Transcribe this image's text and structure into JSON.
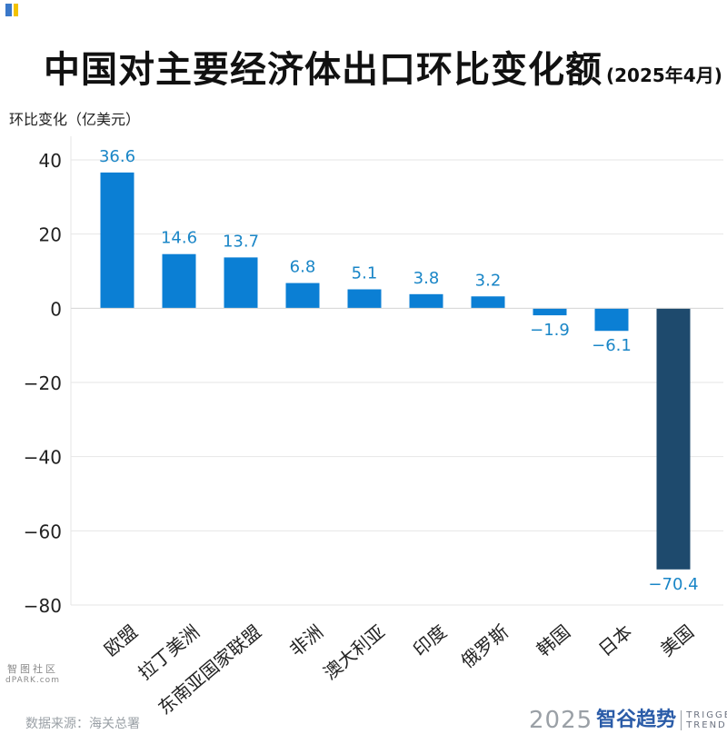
{
  "title": "中国对主要经济体出口环比变化额",
  "subtitle": "(2025年4月)",
  "ylabel": "环比变化（亿美元）",
  "source": "数据来源：海关总署",
  "brand": {
    "year": "2025",
    "name": "智谷趋势",
    "en_line1": "TRIGGER",
    "en_line2": "TREND"
  },
  "watermark": {
    "chars": "智图社区",
    "site": "dPARK.com"
  },
  "colors": {
    "positive": "#0b7fd4",
    "usa": "#1e4a6d",
    "labels": "#1a86c7",
    "grid": "#e6e6e6",
    "axis": "#222222"
  },
  "chart_data": {
    "type": "bar",
    "categories": [
      "欧盟",
      "拉丁美洲",
      "东南亚国家联盟",
      "非洲",
      "澳大利亚",
      "印度",
      "俄罗斯",
      "韩国",
      "日本",
      "美国"
    ],
    "values": [
      36.6,
      14.6,
      13.7,
      6.8,
      5.1,
      3.8,
      3.2,
      -1.9,
      -6.1,
      -70.4
    ],
    "value_labels": [
      "36.6",
      "14.6",
      "13.7",
      "6.8",
      "5.1",
      "3.8",
      "3.2",
      "−1.9",
      "−6.1",
      "−70.4"
    ],
    "ylim": [
      -80,
      40
    ],
    "yticks": [
      40,
      20,
      0,
      -20,
      -40,
      -60,
      -80
    ],
    "ytick_labels": [
      "40",
      "20",
      "0",
      "−20",
      "−40",
      "−60",
      "−80"
    ],
    "highlight_category": "美国",
    "grid": true
  }
}
